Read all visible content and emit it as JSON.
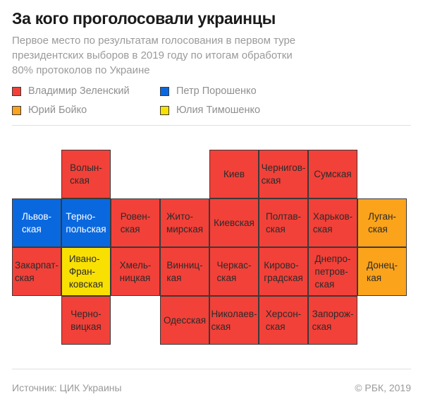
{
  "title": "За кого проголосовали украинцы",
  "subtitle": "Первое место по результатам голосования в первом туре\nпрезидентских выборов в 2019 году по итогам обработки\n80% протоколов по Украине",
  "legend": {
    "items": [
      {
        "key": "zelensky",
        "label": "Владимир Зеленский",
        "color": "#F24139",
        "tile_text_color": "#2B2B2B"
      },
      {
        "key": "poroshenko",
        "label": "Петр Порошенко",
        "color": "#0A68DF",
        "tile_text_color": "#FFFFFF"
      },
      {
        "key": "boyko",
        "label": "Юрий Бойко",
        "color": "#FAA31B",
        "tile_text_color": "#2B2B2B"
      },
      {
        "key": "tymoshenko",
        "label": "Юлия Тимошенко",
        "color": "#F9E003",
        "tile_text_color": "#2B2B2B"
      }
    ]
  },
  "map": {
    "grid": {
      "columns": 8,
      "rows": 4
    },
    "tiles": [
      {
        "region": "Волынская",
        "display": "Волын-\nская",
        "row": 1,
        "col": 2,
        "winner": "zelensky"
      },
      {
        "region": "Киев",
        "display": "Киев",
        "row": 1,
        "col": 5,
        "winner": "zelensky"
      },
      {
        "region": "Черниговская",
        "display": "Чернигов-\nская",
        "row": 1,
        "col": 6,
        "winner": "zelensky"
      },
      {
        "region": "Сумская",
        "display": "Сумская",
        "row": 1,
        "col": 7,
        "winner": "zelensky"
      },
      {
        "region": "Львовская",
        "display": "Львов-\nская",
        "row": 2,
        "col": 1,
        "winner": "poroshenko"
      },
      {
        "region": "Тернопольская",
        "display": "Терно-\nпольская",
        "row": 2,
        "col": 2,
        "winner": "poroshenko"
      },
      {
        "region": "Ровенская",
        "display": "Ровен-\nская",
        "row": 2,
        "col": 3,
        "winner": "zelensky"
      },
      {
        "region": "Житомирская",
        "display": "Жито-\nмирская",
        "row": 2,
        "col": 4,
        "winner": "zelensky"
      },
      {
        "region": "Киевская",
        "display": "Киевская",
        "row": 2,
        "col": 5,
        "winner": "zelensky"
      },
      {
        "region": "Полтавская",
        "display": "Полтав-\nская",
        "row": 2,
        "col": 6,
        "winner": "zelensky"
      },
      {
        "region": "Харьковская",
        "display": "Харьков-\nская",
        "row": 2,
        "col": 7,
        "winner": "zelensky"
      },
      {
        "region": "Луганская",
        "display": "Луган-\nская",
        "row": 2,
        "col": 8,
        "winner": "boyko"
      },
      {
        "region": "Закарпатская",
        "display": "Закарпат-\nская",
        "row": 3,
        "col": 1,
        "winner": "zelensky"
      },
      {
        "region": "Ивано-Франковская",
        "display": "Ивано-\nФран-\nковская",
        "row": 3,
        "col": 2,
        "winner": "tymoshenko"
      },
      {
        "region": "Хмельницкая",
        "display": "Хмель-\nницкая",
        "row": 3,
        "col": 3,
        "winner": "zelensky"
      },
      {
        "region": "Винницкая",
        "display": "Винниц-\nкая",
        "row": 3,
        "col": 4,
        "winner": "zelensky"
      },
      {
        "region": "Черкасская",
        "display": "Черкас-\nская",
        "row": 3,
        "col": 5,
        "winner": "zelensky"
      },
      {
        "region": "Кировоградская",
        "display": "Кирово-\nградская",
        "row": 3,
        "col": 6,
        "winner": "zelensky"
      },
      {
        "region": "Днепропетровская",
        "display": "Днепро-\nпетров-\nская",
        "row": 3,
        "col": 7,
        "winner": "zelensky"
      },
      {
        "region": "Донецкая",
        "display": "Донец-\nкая",
        "row": 3,
        "col": 8,
        "winner": "boyko"
      },
      {
        "region": "Черновицкая",
        "display": "Черно-\nвицкая",
        "row": 4,
        "col": 2,
        "winner": "zelensky"
      },
      {
        "region": "Одесская",
        "display": "Одесская",
        "row": 4,
        "col": 4,
        "winner": "zelensky"
      },
      {
        "region": "Николаевская",
        "display": "Николаев-\nская",
        "row": 4,
        "col": 5,
        "winner": "zelensky"
      },
      {
        "region": "Херсонская",
        "display": "Херсон-\nская",
        "row": 4,
        "col": 6,
        "winner": "zelensky"
      },
      {
        "region": "Запорожская",
        "display": "Запорож-\nская",
        "row": 4,
        "col": 7,
        "winner": "zelensky"
      }
    ]
  },
  "footer": {
    "source": "Источник: ЦИК Украины",
    "copyright": "© РБК, 2019"
  }
}
